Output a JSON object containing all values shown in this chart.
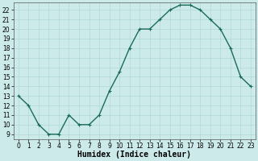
{
  "x": [
    0,
    1,
    2,
    3,
    4,
    5,
    6,
    7,
    8,
    9,
    10,
    11,
    12,
    13,
    14,
    15,
    16,
    17,
    18,
    19,
    20,
    21,
    22,
    23
  ],
  "y": [
    13,
    12,
    10,
    9,
    9,
    11,
    10,
    10,
    11,
    13.5,
    15.5,
    18,
    20,
    20,
    21,
    22,
    22.5,
    22.5,
    22,
    21,
    20,
    18,
    15,
    14
  ],
  "line_color": "#1a6b5a",
  "marker": "+",
  "marker_color": "#1a6b5a",
  "bg_color": "#cceaea",
  "grid_color": "#b0d8d8",
  "xlabel": "Humidex (Indice chaleur)",
  "xlim": [
    -0.5,
    23.5
  ],
  "ylim": [
    8.5,
    22.8
  ],
  "yticks": [
    9,
    10,
    11,
    12,
    13,
    14,
    15,
    16,
    17,
    18,
    19,
    20,
    21,
    22
  ],
  "xticks": [
    0,
    1,
    2,
    3,
    4,
    5,
    6,
    7,
    8,
    9,
    10,
    11,
    12,
    13,
    14,
    15,
    16,
    17,
    18,
    19,
    20,
    21,
    22,
    23
  ],
  "tick_fontsize": 5.5,
  "xlabel_fontsize": 7,
  "linewidth": 1.0,
  "markersize": 3.5,
  "markeredgewidth": 0.8
}
